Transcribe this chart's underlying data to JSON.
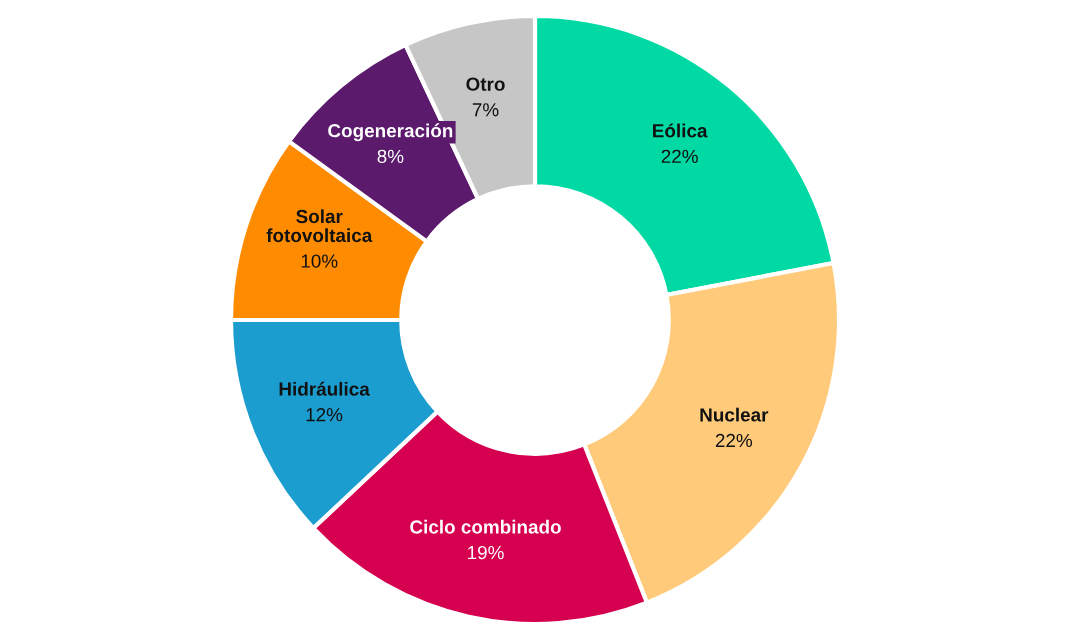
{
  "chart_data": {
    "type": "donut",
    "categories": [
      "Eólica",
      "Nuclear",
      "Ciclo combinado",
      "Hidráulica",
      "Solar\nfotovoltaica",
      "Cogeneración",
      "Otro"
    ],
    "values": [
      22,
      22,
      19,
      12,
      10,
      8,
      7
    ],
    "value_labels": [
      "22%",
      "22%",
      "19%",
      "12%",
      "10%",
      "8%",
      "7%"
    ],
    "colors": [
      "#00d9a3",
      "#ffca7a",
      "#d5004f",
      "#1b9dcf",
      "#ff8c00",
      "#5b1a6c",
      "#c6c6c6"
    ]
  }
}
